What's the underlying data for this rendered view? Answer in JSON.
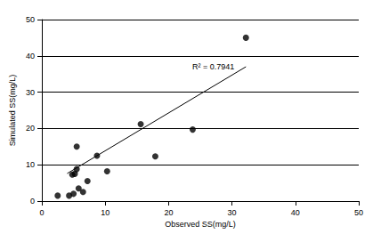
{
  "chart_data": {
    "type": "scatter",
    "x_label": "Observed SS(mg/L)",
    "y_label": "Simulated SS(mg/L)",
    "annotation": "R² = 0.7941",
    "xlim": [
      0,
      50
    ],
    "xticks": [
      0,
      10,
      20,
      30,
      40,
      50
    ],
    "ylim": [
      0,
      50
    ],
    "yticks": [
      0,
      10,
      20,
      30,
      40,
      50
    ],
    "grid": "y",
    "series": [
      {
        "type": "scatter",
        "marker": "circle",
        "color": "#000000",
        "x": [
          2.5,
          4.3,
          5.0,
          5.8,
          6.5,
          7.2,
          4.8,
          5.2,
          5.5,
          5.5,
          8.7,
          10.3,
          15.6,
          17.9,
          23.8,
          32.2
        ],
        "values": [
          1.5,
          1.5,
          2.0,
          3.5,
          2.5,
          5.5,
          7.3,
          7.5,
          8.8,
          15.0,
          12.5,
          8.2,
          21.2,
          12.3,
          19.7,
          45.0
        ]
      },
      {
        "type": "line",
        "line_style": "solid",
        "color": "#000000",
        "x": [
          4.0,
          32.2
        ],
        "values": [
          7.6,
          37.0
        ]
      }
    ]
  }
}
